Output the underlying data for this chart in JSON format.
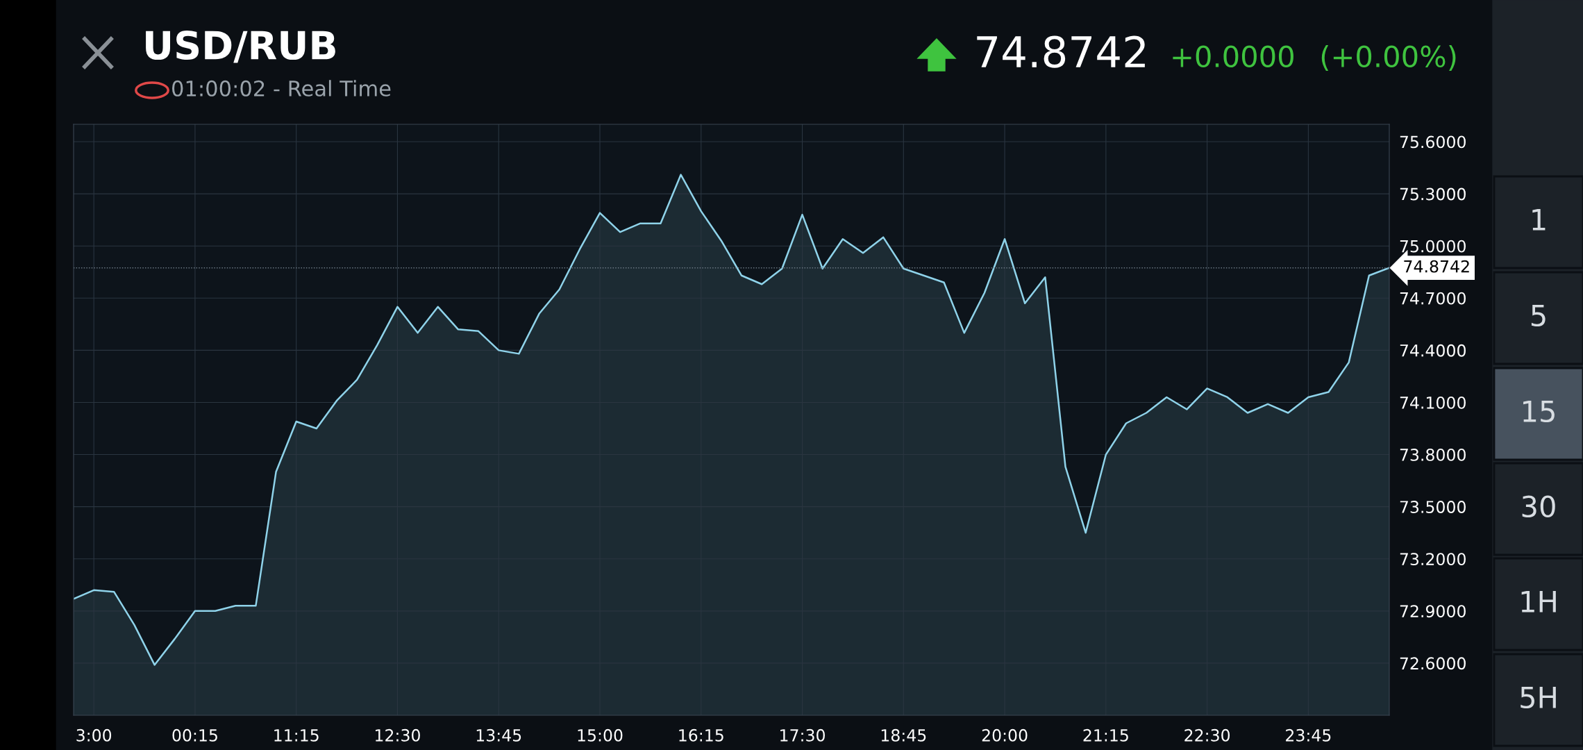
{
  "chart_data": {
    "type": "area",
    "title": "USD/RUB",
    "subtitle": "01:00:02 - Real Time",
    "categories": [
      null,
      "3:00",
      null,
      null,
      null,
      null,
      "00:15",
      null,
      null,
      null,
      null,
      "11:15",
      null,
      null,
      null,
      null,
      "12:30",
      null,
      null,
      null,
      null,
      "13:45",
      null,
      null,
      null,
      null,
      "15:00",
      null,
      null,
      null,
      null,
      "16:15",
      null,
      null,
      null,
      null,
      "17:30",
      null,
      null,
      null,
      null,
      "18:45",
      null,
      null,
      null,
      null,
      "20:00",
      null,
      null,
      null,
      null,
      "21:15",
      null,
      null,
      null,
      null,
      "22:30",
      null,
      null,
      null,
      null,
      "23:45",
      null,
      null,
      null,
      null
    ],
    "series": [
      {
        "color": "#8fd3ea",
        "values": [
          72.97,
          73.02,
          73.01,
          72.82,
          72.59,
          72.74,
          72.9,
          72.9,
          72.93,
          72.93,
          73.7,
          73.99,
          73.95,
          74.11,
          74.23,
          74.43,
          74.65,
          74.5,
          74.65,
          74.52,
          74.51,
          74.4,
          74.38,
          74.61,
          74.75,
          74.98,
          75.19,
          75.08,
          75.13,
          75.13,
          75.41,
          75.2,
          75.03,
          74.83,
          74.78,
          74.87,
          75.18,
          74.87,
          75.04,
          74.96,
          75.05,
          74.87,
          74.83,
          74.79,
          74.5,
          74.73,
          75.04,
          74.67,
          74.82,
          73.73,
          73.35,
          73.8,
          73.98,
          74.04,
          74.13,
          74.06,
          74.18,
          74.13,
          74.04,
          74.09,
          74.04,
          74.13,
          74.16,
          74.33,
          74.83,
          74.8742
        ]
      }
    ],
    "ylim": [
      72.3,
      75.7
    ],
    "yticks": [
      {
        "value": 72.6,
        "label": "72.6000"
      },
      {
        "value": 72.9,
        "label": "72.9000"
      },
      {
        "value": 73.2,
        "label": "73.2000"
      },
      {
        "value": 73.5,
        "label": "73.5000"
      },
      {
        "value": 73.8,
        "label": "73.8000"
      },
      {
        "value": 74.1,
        "label": "74.1000"
      },
      {
        "value": 74.4,
        "label": "74.4000"
      },
      {
        "value": 74.7,
        "label": "74.7000"
      },
      {
        "value": 75.0,
        "label": "75.0000"
      },
      {
        "value": 75.3,
        "label": "75.3000"
      },
      {
        "value": 75.6,
        "label": "75.6000"
      }
    ],
    "ref_lines": [
      {
        "axis": "y",
        "value": 74.8742,
        "label": "74.8742",
        "color": "#6f7c88",
        "line_style": "dotted"
      }
    ],
    "annotations": [
      "74.8742",
      "+0.0000",
      "(+0.00%)",
      "1",
      "5",
      "15",
      "30",
      "1H",
      "5H"
    ],
    "grid": true,
    "marker": "none",
    "line_style": "solid"
  }
}
